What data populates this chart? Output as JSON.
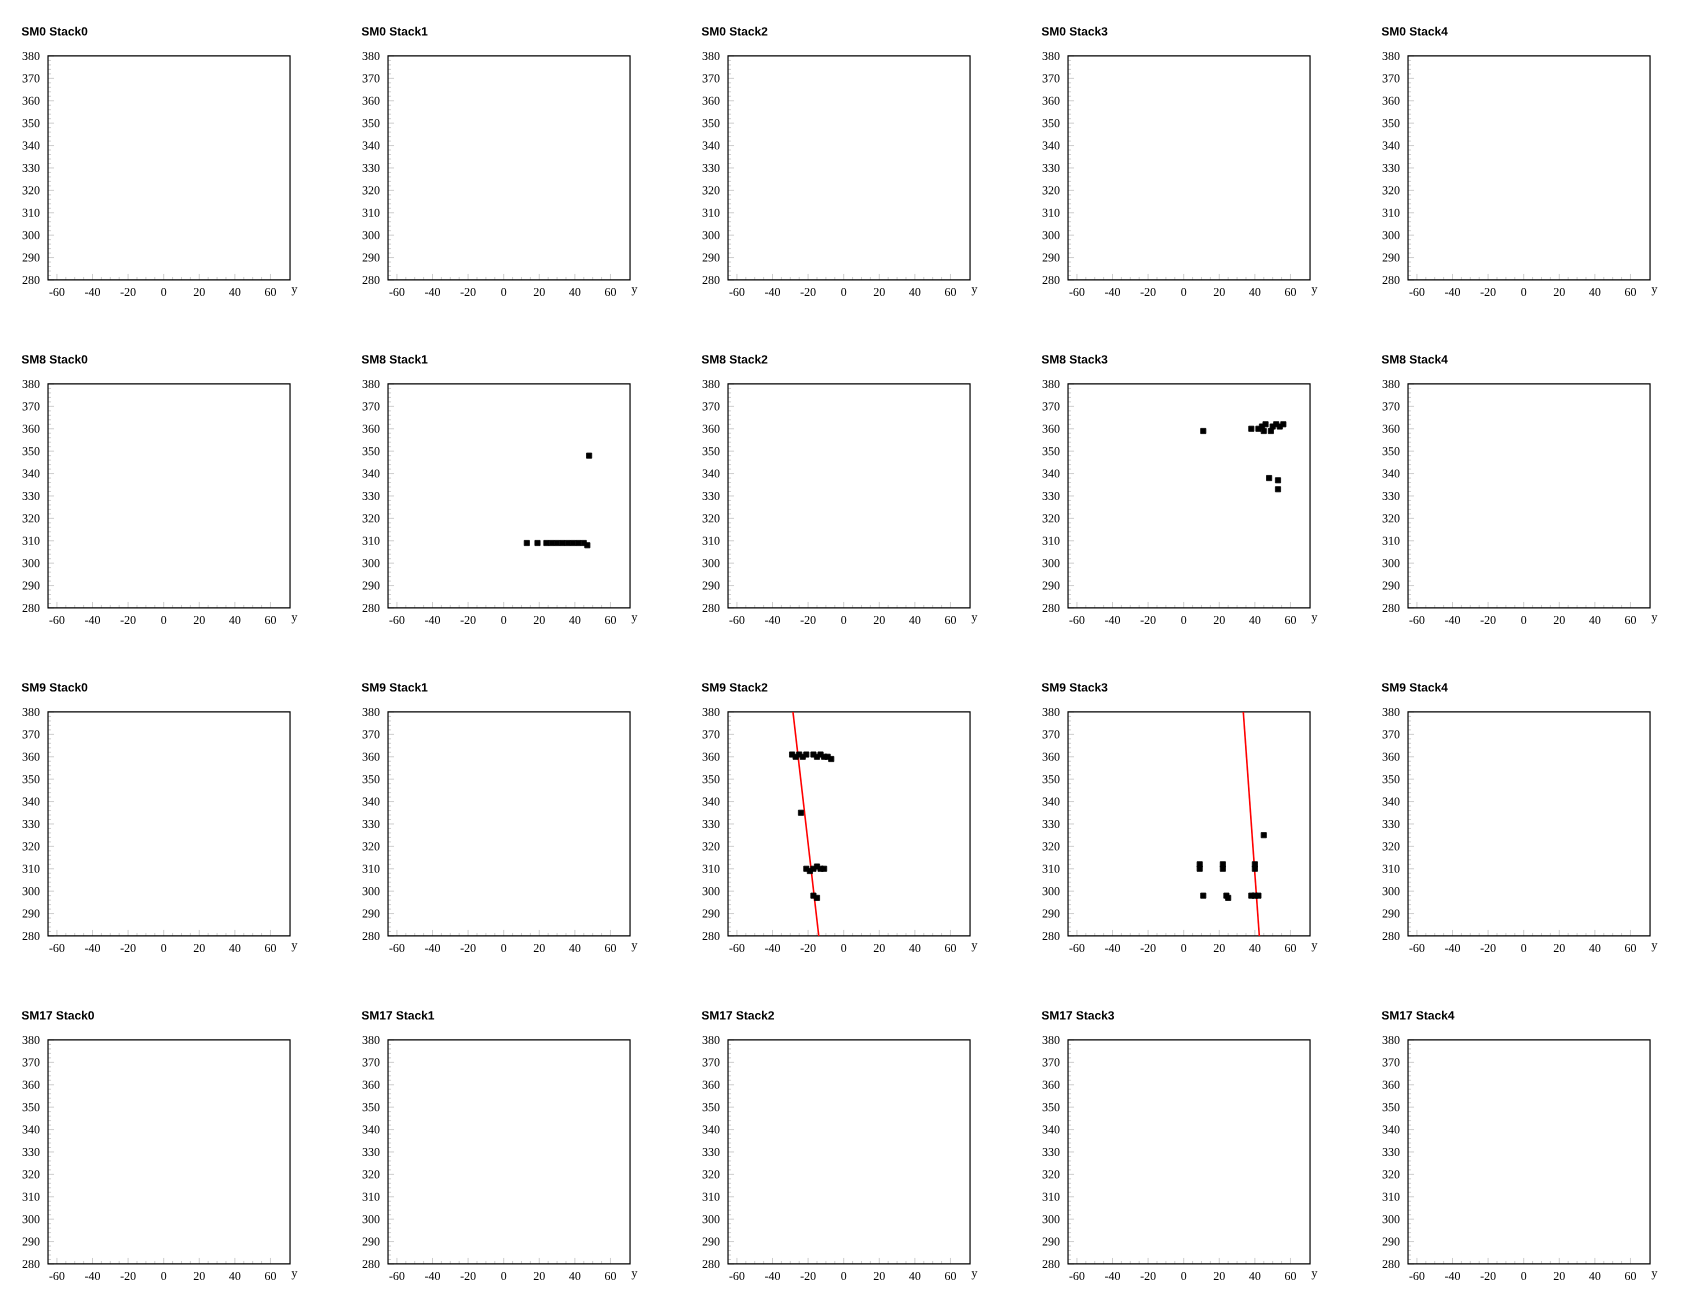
{
  "chart_data": [
    {
      "type": "scatter",
      "title": "SM0 Stack0",
      "xlabel": "y",
      "xlim": [
        -65,
        71
      ],
      "ylim": [
        280,
        380
      ],
      "xticks": [
        -60,
        -40,
        -20,
        0,
        20,
        40,
        60
      ],
      "yticks": [
        280,
        290,
        300,
        310,
        320,
        330,
        340,
        350,
        360,
        370,
        380
      ]
    },
    {
      "type": "scatter",
      "title": "SM0 Stack1",
      "xlabel": "y",
      "xlim": [
        -65,
        71
      ],
      "ylim": [
        280,
        380
      ],
      "xticks": [
        -60,
        -40,
        -20,
        0,
        20,
        40,
        60
      ],
      "yticks": [
        280,
        290,
        300,
        310,
        320,
        330,
        340,
        350,
        360,
        370,
        380
      ]
    },
    {
      "type": "scatter",
      "title": "SM0 Stack2",
      "xlabel": "y",
      "xlim": [
        -65,
        71
      ],
      "ylim": [
        280,
        380
      ],
      "xticks": [
        -60,
        -40,
        -20,
        0,
        20,
        40,
        60
      ],
      "yticks": [
        280,
        290,
        300,
        310,
        320,
        330,
        340,
        350,
        360,
        370,
        380
      ]
    },
    {
      "type": "scatter",
      "title": "SM0 Stack3",
      "xlabel": "y",
      "xlim": [
        -65,
        71
      ],
      "ylim": [
        280,
        380
      ],
      "xticks": [
        -60,
        -40,
        -20,
        0,
        20,
        40,
        60
      ],
      "yticks": [
        280,
        290,
        300,
        310,
        320,
        330,
        340,
        350,
        360,
        370,
        380
      ]
    },
    {
      "type": "scatter",
      "title": "SM0 Stack4",
      "xlabel": "y",
      "xlim": [
        -65,
        71
      ],
      "ylim": [
        280,
        380
      ],
      "xticks": [
        -60,
        -40,
        -20,
        0,
        20,
        40,
        60
      ],
      "yticks": [
        280,
        290,
        300,
        310,
        320,
        330,
        340,
        350,
        360,
        370,
        380
      ]
    },
    {
      "type": "scatter",
      "title": "SM8 Stack0",
      "xlabel": "y",
      "xlim": [
        -65,
        71
      ],
      "ylim": [
        280,
        380
      ],
      "xticks": [
        -60,
        -40,
        -20,
        0,
        20,
        40,
        60
      ],
      "yticks": [
        280,
        290,
        300,
        310,
        320,
        330,
        340,
        350,
        360,
        370,
        380
      ]
    },
    {
      "type": "scatter",
      "title": "SM8 Stack1",
      "xlabel": "y",
      "xlim": [
        -65,
        71
      ],
      "ylim": [
        280,
        380
      ],
      "xticks": [
        -60,
        -40,
        -20,
        0,
        20,
        40,
        60
      ],
      "yticks": [
        280,
        290,
        300,
        310,
        320,
        330,
        340,
        350,
        360,
        370,
        380
      ],
      "series": [
        {
          "color": "#000000",
          "marker": "square",
          "x": [
            13,
            19,
            24,
            27,
            30,
            33,
            36,
            39,
            42,
            45,
            47,
            48
          ],
          "values": [
            309,
            309,
            309,
            309,
            309,
            309,
            309,
            309,
            309,
            309,
            308,
            348
          ]
        }
      ]
    },
    {
      "type": "scatter",
      "title": "SM8 Stack2",
      "xlabel": "y",
      "xlim": [
        -65,
        71
      ],
      "ylim": [
        280,
        380
      ],
      "xticks": [
        -60,
        -40,
        -20,
        0,
        20,
        40,
        60
      ],
      "yticks": [
        280,
        290,
        300,
        310,
        320,
        330,
        340,
        350,
        360,
        370,
        380
      ]
    },
    {
      "type": "scatter",
      "title": "SM8 Stack3",
      "xlabel": "y",
      "xlim": [
        -65,
        71
      ],
      "ylim": [
        280,
        380
      ],
      "xticks": [
        -60,
        -40,
        -20,
        0,
        20,
        40,
        60
      ],
      "yticks": [
        280,
        290,
        300,
        310,
        320,
        330,
        340,
        350,
        360,
        370,
        380
      ],
      "series": [
        {
          "color": "#000000",
          "marker": "square",
          "x": [
            11,
            38,
            42,
            44,
            46,
            48,
            50,
            52,
            54,
            56,
            45,
            49,
            48,
            53,
            53
          ],
          "values": [
            359,
            360,
            360,
            361,
            362,
            null,
            361,
            362,
            361,
            362,
            359,
            359,
            338,
            337,
            333
          ]
        }
      ]
    },
    {
      "type": "scatter",
      "title": "SM8 Stack4",
      "xlabel": "y",
      "xlim": [
        -65,
        71
      ],
      "ylim": [
        280,
        380
      ],
      "xticks": [
        -60,
        -40,
        -20,
        0,
        20,
        40,
        60
      ],
      "yticks": [
        280,
        290,
        300,
        310,
        320,
        330,
        340,
        350,
        360,
        370,
        380
      ]
    },
    {
      "type": "scatter",
      "title": "SM9 Stack0",
      "xlabel": "y",
      "xlim": [
        -65,
        71
      ],
      "ylim": [
        280,
        380
      ],
      "xticks": [
        -60,
        -40,
        -20,
        0,
        20,
        40,
        60
      ],
      "yticks": [
        280,
        290,
        300,
        310,
        320,
        330,
        340,
        350,
        360,
        370,
        380
      ]
    },
    {
      "type": "scatter",
      "title": "SM9 Stack1",
      "xlabel": "y",
      "xlim": [
        -65,
        71
      ],
      "ylim": [
        280,
        380
      ],
      "xticks": [
        -60,
        -40,
        -20,
        0,
        20,
        40,
        60
      ],
      "yticks": [
        280,
        290,
        300,
        310,
        320,
        330,
        340,
        350,
        360,
        370,
        380
      ]
    },
    {
      "type": "scatter",
      "title": "SM9 Stack2",
      "xlabel": "y",
      "xlim": [
        -65,
        71
      ],
      "ylim": [
        280,
        380
      ],
      "xticks": [
        -60,
        -40,
        -20,
        0,
        20,
        40,
        60
      ],
      "yticks": [
        280,
        290,
        300,
        310,
        320,
        330,
        340,
        350,
        360,
        370,
        380
      ],
      "series": [
        {
          "color": "#000000",
          "marker": "square",
          "x": [
            -29,
            -27,
            -25,
            -23,
            -21,
            -17,
            -15,
            -13,
            -11,
            -9,
            -7,
            -24,
            -21,
            -19,
            -17,
            -15,
            -13,
            -11,
            -17,
            -15
          ],
          "values": [
            361,
            360,
            361,
            360,
            361,
            361,
            360,
            361,
            360,
            360,
            359,
            335,
            310,
            309,
            310,
            311,
            310,
            310,
            298,
            297
          ]
        },
        {
          "type": "line",
          "color": "#ff0000",
          "x": [
            -28.5,
            -14
          ],
          "values": [
            380,
            280
          ]
        }
      ]
    },
    {
      "type": "scatter",
      "title": "SM9 Stack3",
      "xlabel": "y",
      "xlim": [
        -65,
        71
      ],
      "ylim": [
        280,
        380
      ],
      "xticks": [
        -60,
        -40,
        -20,
        0,
        20,
        40,
        60
      ],
      "yticks": [
        280,
        290,
        300,
        310,
        320,
        330,
        340,
        350,
        360,
        370,
        380
      ],
      "series": [
        {
          "color": "#000000",
          "marker": "square",
          "x": [
            9,
            9,
            11,
            22,
            22,
            24,
            25,
            40,
            40,
            38,
            40,
            42,
            45
          ],
          "values": [
            310,
            312,
            298,
            310,
            312,
            298,
            297,
            310,
            312,
            298,
            298,
            298,
            325
          ]
        },
        {
          "type": "line",
          "color": "#ff0000",
          "x": [
            33.5,
            42.5
          ],
          "values": [
            380,
            280
          ]
        }
      ]
    },
    {
      "type": "scatter",
      "title": "SM9 Stack4",
      "xlabel": "y",
      "xlim": [
        -65,
        71
      ],
      "ylim": [
        280,
        380
      ],
      "xticks": [
        -60,
        -40,
        -20,
        0,
        20,
        40,
        60
      ],
      "yticks": [
        280,
        290,
        300,
        310,
        320,
        330,
        340,
        350,
        360,
        370,
        380
      ]
    },
    {
      "type": "scatter",
      "title": "SM17 Stack0",
      "xlabel": "y",
      "xlim": [
        -65,
        71
      ],
      "ylim": [
        280,
        380
      ],
      "xticks": [
        -60,
        -40,
        -20,
        0,
        20,
        40,
        60
      ],
      "yticks": [
        280,
        290,
        300,
        310,
        320,
        330,
        340,
        350,
        360,
        370,
        380
      ]
    },
    {
      "type": "scatter",
      "title": "SM17 Stack1",
      "xlabel": "y",
      "xlim": [
        -65,
        71
      ],
      "ylim": [
        280,
        380
      ],
      "xticks": [
        -60,
        -40,
        -20,
        0,
        20,
        40,
        60
      ],
      "yticks": [
        280,
        290,
        300,
        310,
        320,
        330,
        340,
        350,
        360,
        370,
        380
      ]
    },
    {
      "type": "scatter",
      "title": "SM17 Stack2",
      "xlabel": "y",
      "xlim": [
        -65,
        71
      ],
      "ylim": [
        280,
        380
      ],
      "xticks": [
        -60,
        -40,
        -20,
        0,
        20,
        40,
        60
      ],
      "yticks": [
        280,
        290,
        300,
        310,
        320,
        330,
        340,
        350,
        360,
        370,
        380
      ]
    },
    {
      "type": "scatter",
      "title": "SM17 Stack3",
      "xlabel": "y",
      "xlim": [
        -65,
        71
      ],
      "ylim": [
        280,
        380
      ],
      "xticks": [
        -60,
        -40,
        -20,
        0,
        20,
        40,
        60
      ],
      "yticks": [
        280,
        290,
        300,
        310,
        320,
        330,
        340,
        350,
        360,
        370,
        380
      ]
    },
    {
      "type": "scatter",
      "title": "SM17 Stack4",
      "xlabel": "y",
      "xlim": [
        -65,
        71
      ],
      "ylim": [
        280,
        380
      ],
      "xticks": [
        -60,
        -40,
        -20,
        0,
        20,
        40,
        60
      ],
      "yticks": [
        280,
        290,
        300,
        310,
        320,
        330,
        340,
        350,
        360,
        370,
        380
      ]
    }
  ]
}
